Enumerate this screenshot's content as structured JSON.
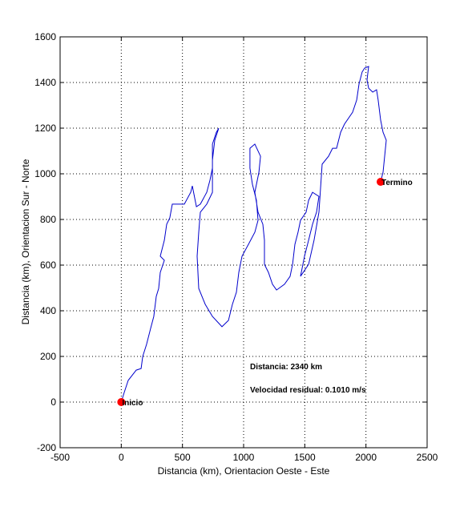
{
  "chart_data": {
    "type": "line",
    "xlabel": "Distancia (km), Orientacion Oeste - Este",
    "ylabel": "Distancia (km), Orientacion Sur - Norte",
    "xlim": [
      -500,
      2500
    ],
    "ylim": [
      -200,
      1600
    ],
    "xticks": [
      -500,
      0,
      500,
      1000,
      1500,
      2000,
      2500
    ],
    "yticks": [
      -200,
      0,
      200,
      400,
      600,
      800,
      1000,
      1200,
      1400,
      1600
    ],
    "grid": true,
    "color": "#0000cc",
    "x": [
      0,
      24,
      57,
      122,
      162,
      175,
      207,
      240,
      266,
      286,
      306,
      319,
      352,
      319,
      352,
      371,
      397,
      417,
      483,
      515,
      568,
      581,
      614,
      646,
      699,
      725,
      745,
      745,
      777,
      797,
      764,
      745,
      745,
      699,
      646,
      633,
      620,
      633,
      686,
      745,
      823,
      876,
      908,
      941,
      961,
      987,
      1039,
      1092,
      1118,
      1105,
      1072,
      1052,
      1052,
      1092,
      1138,
      1125,
      1092,
      1118,
      1157,
      1170,
      1170,
      1203,
      1236,
      1269,
      1334,
      1380,
      1400,
      1419,
      1445,
      1465,
      1511,
      1531,
      1563,
      1616,
      1596,
      1563,
      1531,
      1498,
      1465,
      1531,
      1576,
      1616,
      1642,
      1694,
      1727,
      1760,
      1793,
      1825,
      1891,
      1924,
      1943,
      1969,
      1989,
      2022,
      2009,
      2022,
      2055,
      2087,
      2100,
      2120,
      2140,
      2166,
      2153,
      2140,
      2120
    ],
    "values": [
      0,
      42,
      95,
      140,
      147,
      200,
      253,
      323,
      375,
      463,
      498,
      568,
      621,
      639,
      709,
      779,
      807,
      867,
      867,
      867,
      919,
      947,
      856,
      867,
      919,
      972,
      1025,
      1130,
      1182,
      1200,
      1147,
      1060,
      919,
      867,
      832,
      744,
      639,
      498,
      428,
      375,
      330,
      358,
      428,
      481,
      568,
      639,
      691,
      744,
      796,
      884,
      954,
      1025,
      1112,
      1130,
      1077,
      1007,
      919,
      832,
      779,
      709,
      603,
      568,
      516,
      491,
      516,
      551,
      603,
      691,
      744,
      796,
      832,
      884,
      919,
      901,
      832,
      779,
      709,
      639,
      551,
      603,
      709,
      832,
      1042,
      1077,
      1112,
      1112,
      1182,
      1218,
      1270,
      1323,
      1393,
      1446,
      1463,
      1470,
      1411,
      1375,
      1358,
      1368,
      1323,
      1235,
      1182,
      1147,
      1077,
      1007,
      965
    ],
    "markers": [
      {
        "label": "Inicio",
        "x": 0,
        "y": 0
      },
      {
        "label": "Termino",
        "x": 2120,
        "y": 965
      }
    ],
    "marker_color": "#ff0000",
    "annotations": [
      "Distancia: 2340 km",
      "Velocidad residual: 0.1010 m/s"
    ]
  }
}
